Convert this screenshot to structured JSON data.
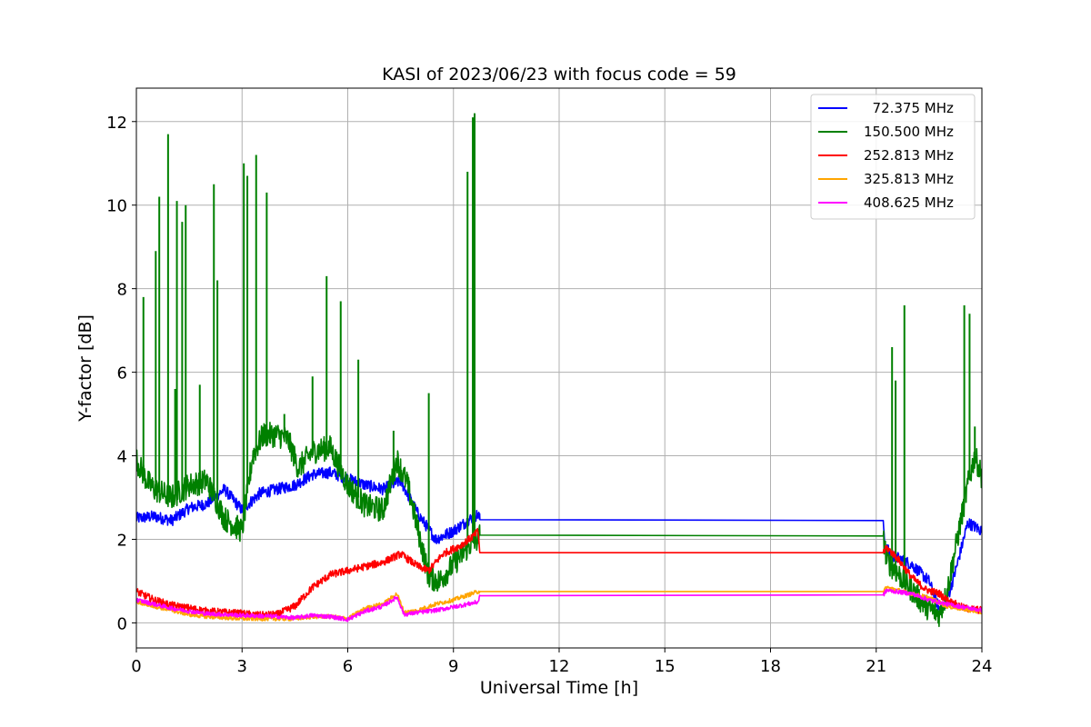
{
  "chart_data": {
    "type": "line",
    "title": "KASI of 2023/06/23 with focus code = 59",
    "xlabel": "Universal Time [h]",
    "ylabel": "Y-factor [dB]",
    "xlim": [
      0,
      24
    ],
    "ylim": [
      -0.6,
      12.8
    ],
    "xticks": [
      0,
      3,
      6,
      9,
      12,
      15,
      18,
      21,
      24
    ],
    "yticks": [
      0,
      2,
      4,
      6,
      8,
      10,
      12
    ],
    "grid": true,
    "legend_position": "top-right",
    "series": [
      {
        "name": "  72.375 MHz",
        "color": "#0000ff",
        "points": [
          [
            0,
            2.5
          ],
          [
            0.5,
            2.55
          ],
          [
            1,
            2.45
          ],
          [
            1.5,
            2.75
          ],
          [
            2,
            2.85
          ],
          [
            2.5,
            3.2
          ],
          [
            3,
            2.7
          ],
          [
            3.5,
            3.1
          ],
          [
            4,
            3.2
          ],
          [
            4.5,
            3.3
          ],
          [
            5,
            3.55
          ],
          [
            5.5,
            3.6
          ],
          [
            6,
            3.45
          ],
          [
            6.5,
            3.3
          ],
          [
            7,
            3.2
          ],
          [
            7.5,
            3.4
          ],
          [
            8,
            2.6
          ],
          [
            8.5,
            2.0
          ],
          [
            9,
            2.2
          ],
          [
            9.5,
            2.5
          ],
          [
            9.7,
            2.6
          ],
          [
            9.75,
            2.47
          ],
          [
            21.2,
            2.45
          ],
          [
            21.25,
            1.8
          ],
          [
            21.5,
            1.6
          ],
          [
            22,
            1.4
          ],
          [
            22.5,
            1.0
          ],
          [
            22.8,
            0.3
          ],
          [
            23,
            0.5
          ],
          [
            23.3,
            1.4
          ],
          [
            23.6,
            2.4
          ],
          [
            23.8,
            2.3
          ],
          [
            24,
            2.2
          ]
        ],
        "noise": 0.14,
        "spikes": []
      },
      {
        "name": "150.500 MHz",
        "color": "#008000",
        "points": [
          [
            0,
            3.9
          ],
          [
            0.3,
            3.4
          ],
          [
            0.5,
            3.2
          ],
          [
            1,
            3.0
          ],
          [
            1.5,
            3.3
          ],
          [
            2,
            3.4
          ],
          [
            2.5,
            2.5
          ],
          [
            3,
            2.2
          ],
          [
            3.3,
            4.0
          ],
          [
            3.6,
            4.5
          ],
          [
            4,
            4.5
          ],
          [
            4.3,
            4.4
          ],
          [
            4.6,
            3.7
          ],
          [
            5,
            4.1
          ],
          [
            5.5,
            4.2
          ],
          [
            6,
            3.3
          ],
          [
            6.5,
            2.8
          ],
          [
            7,
            2.7
          ],
          [
            7.4,
            3.9
          ],
          [
            7.7,
            3.3
          ],
          [
            8,
            2.2
          ],
          [
            8.3,
            1.1
          ],
          [
            8.6,
            1.0
          ],
          [
            9,
            1.4
          ],
          [
            9.5,
            1.9
          ],
          [
            9.7,
            2.0
          ],
          [
            9.75,
            2.1
          ],
          [
            21.2,
            2.08
          ],
          [
            21.3,
            1.5
          ],
          [
            21.6,
            1.2
          ],
          [
            22,
            0.8
          ],
          [
            22.4,
            0.4
          ],
          [
            22.8,
            0.2
          ],
          [
            23,
            0.7
          ],
          [
            23.3,
            2.0
          ],
          [
            23.6,
            3.3
          ],
          [
            23.8,
            4.0
          ],
          [
            24,
            3.5
          ]
        ],
        "noise": 0.3,
        "spikes": [
          [
            0.2,
            7.8
          ],
          [
            0.55,
            8.9
          ],
          [
            0.65,
            10.2
          ],
          [
            0.9,
            11.7
          ],
          [
            1.1,
            5.6
          ],
          [
            1.15,
            10.1
          ],
          [
            1.3,
            9.6
          ],
          [
            1.4,
            10.0
          ],
          [
            1.8,
            5.7
          ],
          [
            2.2,
            10.5
          ],
          [
            2.3,
            8.2
          ],
          [
            3.05,
            11.0
          ],
          [
            3.15,
            10.7
          ],
          [
            3.4,
            11.2
          ],
          [
            3.7,
            10.3
          ],
          [
            4.2,
            5.0
          ],
          [
            5.0,
            5.9
          ],
          [
            5.4,
            8.3
          ],
          [
            5.8,
            7.7
          ],
          [
            6.3,
            6.3
          ],
          [
            7.3,
            4.6
          ],
          [
            8.3,
            5.5
          ],
          [
            9.4,
            10.8
          ],
          [
            9.55,
            12.1
          ],
          [
            9.6,
            12.2
          ],
          [
            21.45,
            6.6
          ],
          [
            21.55,
            5.8
          ],
          [
            21.8,
            7.6
          ],
          [
            23.5,
            7.6
          ],
          [
            23.65,
            7.4
          ],
          [
            23.8,
            4.7
          ]
        ]
      },
      {
        "name": "252.813 MHz",
        "color": "#ff0000",
        "points": [
          [
            0,
            0.75
          ],
          [
            0.5,
            0.55
          ],
          [
            1,
            0.42
          ],
          [
            1.5,
            0.35
          ],
          [
            2,
            0.28
          ],
          [
            3,
            0.22
          ],
          [
            3.5,
            0.18
          ],
          [
            4,
            0.2
          ],
          [
            4.5,
            0.4
          ],
          [
            5,
            0.85
          ],
          [
            5.5,
            1.15
          ],
          [
            6,
            1.25
          ],
          [
            6.5,
            1.35
          ],
          [
            7,
            1.45
          ],
          [
            7.5,
            1.65
          ],
          [
            8,
            1.35
          ],
          [
            8.3,
            1.25
          ],
          [
            8.7,
            1.65
          ],
          [
            9.2,
            1.85
          ],
          [
            9.6,
            2.1
          ],
          [
            9.7,
            2.2
          ],
          [
            9.75,
            1.68
          ],
          [
            21.2,
            1.68
          ],
          [
            21.3,
            1.8
          ],
          [
            21.6,
            1.55
          ],
          [
            22,
            1.1
          ],
          [
            22.4,
            0.8
          ],
          [
            22.8,
            0.7
          ],
          [
            23,
            0.55
          ],
          [
            23.5,
            0.35
          ],
          [
            24,
            0.3
          ]
        ],
        "noise": 0.09,
        "spikes": []
      },
      {
        "name": "325.813 MHz",
        "color": "#ffa500",
        "points": [
          [
            0,
            0.5
          ],
          [
            0.5,
            0.4
          ],
          [
            1,
            0.3
          ],
          [
            1.5,
            0.2
          ],
          [
            2,
            0.15
          ],
          [
            3,
            0.1
          ],
          [
            4,
            0.1
          ],
          [
            4.5,
            0.1
          ],
          [
            5,
            0.15
          ],
          [
            5.5,
            0.15
          ],
          [
            6,
            0.1
          ],
          [
            6.5,
            0.35
          ],
          [
            7,
            0.45
          ],
          [
            7.4,
            0.7
          ],
          [
            7.6,
            0.25
          ],
          [
            8,
            0.3
          ],
          [
            8.5,
            0.45
          ],
          [
            9,
            0.55
          ],
          [
            9.7,
            0.75
          ],
          [
            9.75,
            0.75
          ],
          [
            21.2,
            0.75
          ],
          [
            21.3,
            0.85
          ],
          [
            22,
            0.7
          ],
          [
            22.5,
            0.6
          ],
          [
            23,
            0.4
          ],
          [
            24,
            0.25
          ]
        ],
        "noise": 0.05,
        "spikes": []
      },
      {
        "name": "408.625 MHz",
        "color": "#ff00ff",
        "points": [
          [
            0,
            0.55
          ],
          [
            0.5,
            0.45
          ],
          [
            1,
            0.35
          ],
          [
            1.5,
            0.28
          ],
          [
            2,
            0.22
          ],
          [
            3,
            0.18
          ],
          [
            4,
            0.15
          ],
          [
            4.5,
            0.12
          ],
          [
            5,
            0.18
          ],
          [
            5.5,
            0.15
          ],
          [
            6,
            0.08
          ],
          [
            6.5,
            0.28
          ],
          [
            7,
            0.4
          ],
          [
            7.4,
            0.62
          ],
          [
            7.6,
            0.2
          ],
          [
            8,
            0.25
          ],
          [
            8.5,
            0.3
          ],
          [
            9,
            0.38
          ],
          [
            9.7,
            0.5
          ],
          [
            9.75,
            0.65
          ],
          [
            21.2,
            0.67
          ],
          [
            21.3,
            0.78
          ],
          [
            22,
            0.7
          ],
          [
            22.5,
            0.55
          ],
          [
            23,
            0.45
          ],
          [
            24,
            0.3
          ]
        ],
        "noise": 0.05,
        "spikes": []
      }
    ]
  }
}
